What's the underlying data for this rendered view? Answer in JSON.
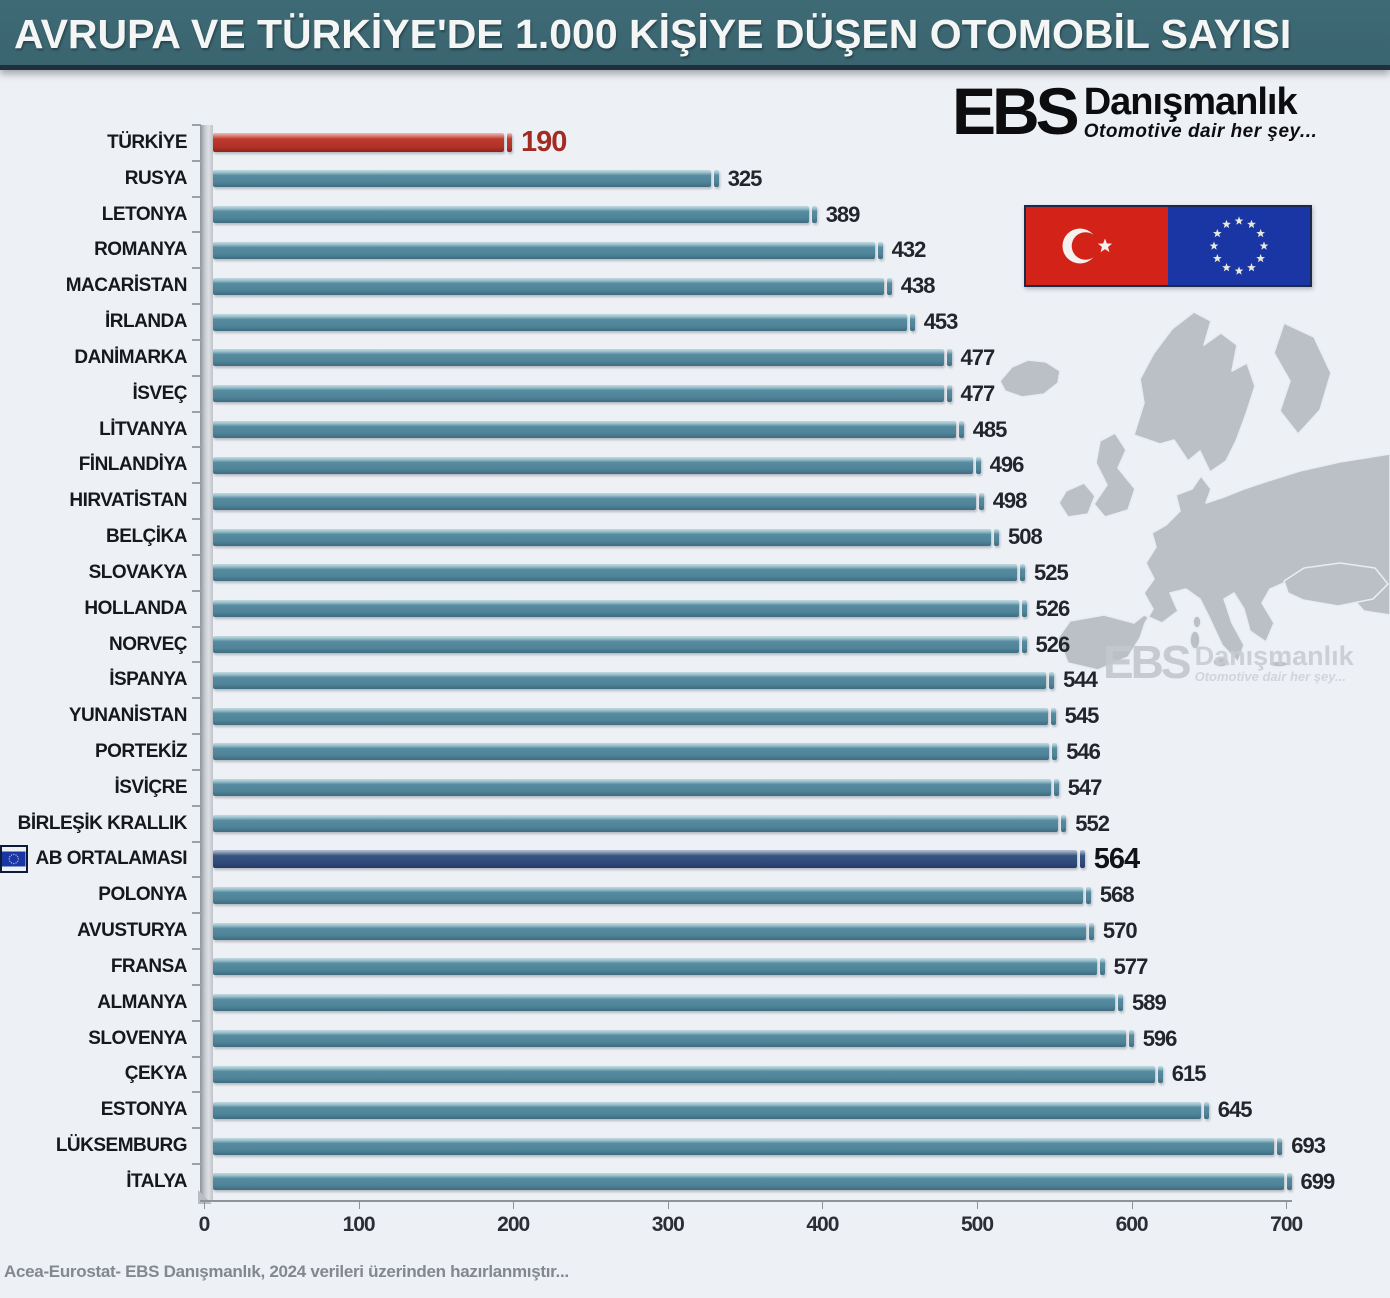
{
  "banner": {
    "title": "AVRUPA VE TÜRKİYE'DE 1.000 KİŞİYE DÜŞEN OTOMOBİL SAYISI"
  },
  "logo": {
    "abbr": "EBS",
    "name": "Danışmanlık",
    "tagline": "Otomotive dair her şey..."
  },
  "watermark": {
    "abbr": "EBS",
    "name": "Danışmanlık",
    "tagline": "Otomotive dair her şey..."
  },
  "icons": {
    "turkey_flag": "turkey-flag",
    "eu_flag": "eu-flag",
    "eu_mini_flag": "eu-mini-flag",
    "europe_map": "europe-map-watermark"
  },
  "footer": {
    "source": "Acea-Eurostat- EBS Danışmanlık, 2024 verileri üzerinden hazırlanmıştır..."
  },
  "chart_data": {
    "type": "bar",
    "orientation": "horizontal",
    "title": "AVRUPA VE TÜRKİYE'DE 1.000 KİŞİYE DÜŞEN OTOMOBİL SAYISI",
    "xlabel": "",
    "ylabel": "",
    "xlim": [
      0,
      700
    ],
    "x_ticks": [
      0,
      100,
      200,
      300,
      400,
      500,
      600,
      700
    ],
    "grid": false,
    "legend": false,
    "categories": [
      "TÜRKİYE",
      "RUSYA",
      "LETONYA",
      "ROMANYA",
      "MACARİSTAN",
      "İRLANDA",
      "DANİMARKA",
      "İSVEÇ",
      "LİTVANYA",
      "FİNLANDİYA",
      "HIRVATİSTAN",
      "BELÇİKA",
      "SLOVAKYA",
      "HOLLANDA",
      "NORVEÇ",
      "İSPANYA",
      "YUNANİSTAN",
      "PORTEKİZ",
      "İSVİÇRE",
      "BİRLEŞİK KRALLIK",
      "AB ORTALAMASI",
      "POLONYA",
      "AVUSTURYA",
      "FRANSA",
      "ALMANYA",
      "SLOVENYA",
      "ÇEKYA",
      "ESTONYA",
      "LÜKSEMBURG",
      "İTALYA"
    ],
    "values": [
      190,
      325,
      389,
      432,
      438,
      453,
      477,
      477,
      485,
      496,
      498,
      508,
      525,
      526,
      526,
      544,
      545,
      546,
      547,
      552,
      564,
      568,
      570,
      577,
      589,
      596,
      615,
      645,
      693,
      699
    ],
    "highlight_red_category": "TÜRKİYE",
    "highlight_navy_category": "AB ORTALAMASI",
    "colors": {
      "bar_default": "#4f8398",
      "bar_turkey": "#b23227",
      "bar_eu_average": "#30497a",
      "value_label": "#22252b",
      "turkey_value_label": "#a32c22",
      "banner_background": "#3a6570",
      "page_background": "#edf0f5"
    }
  }
}
